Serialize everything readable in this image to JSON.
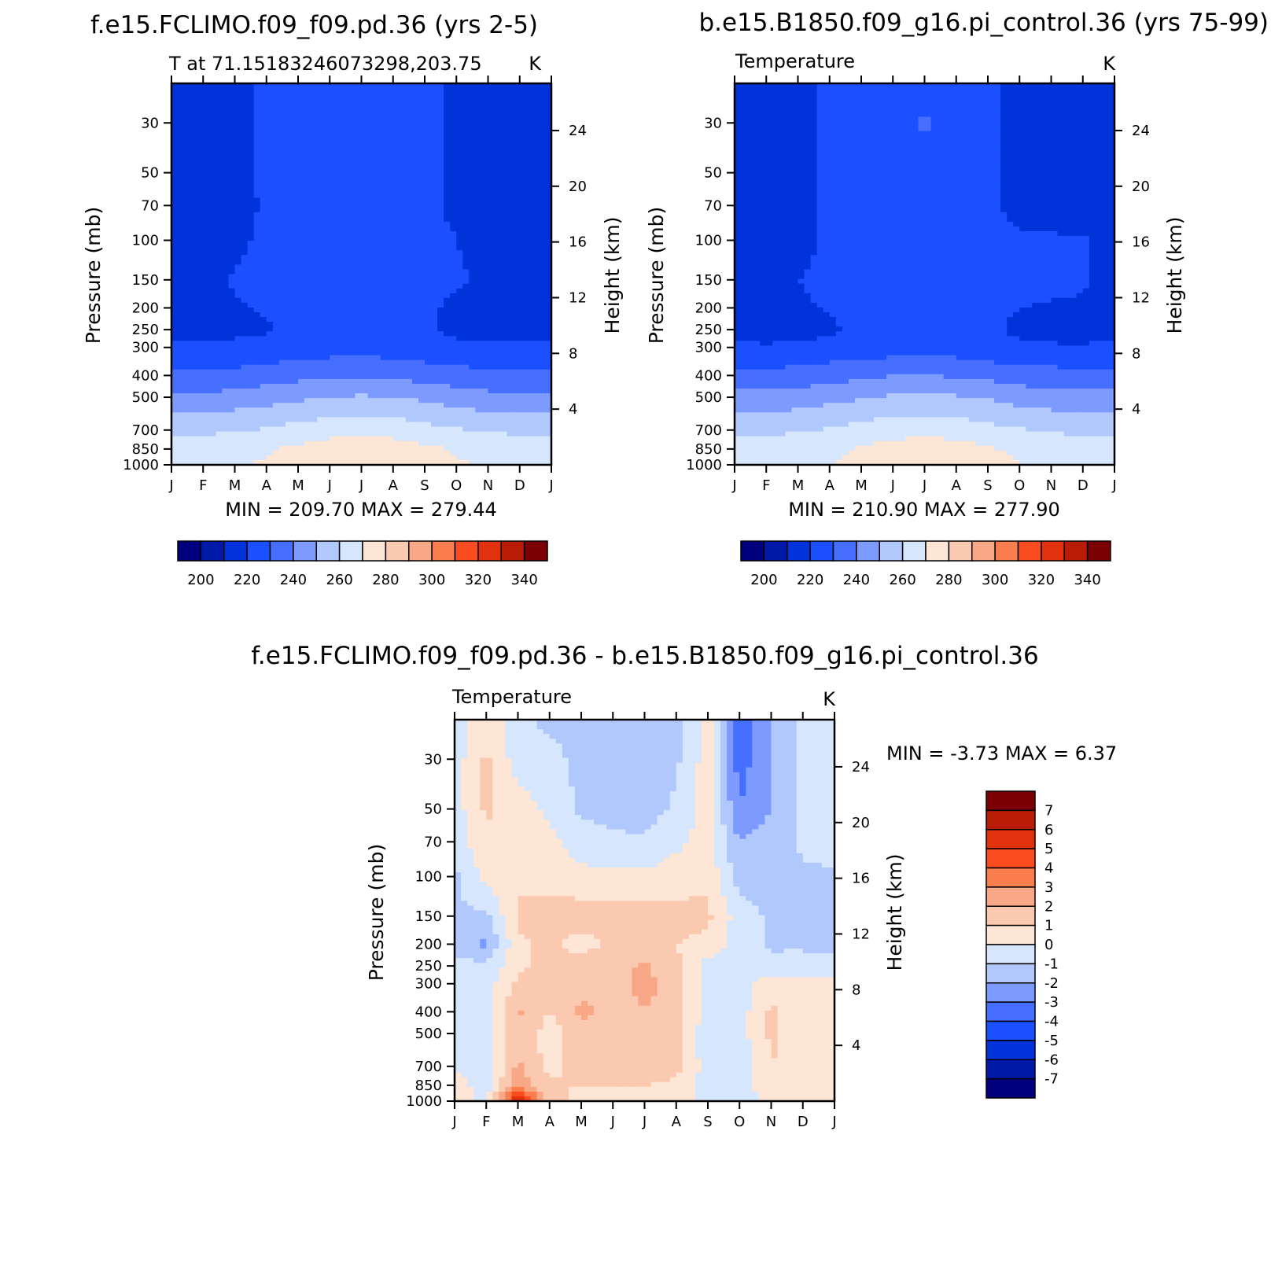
{
  "colors": {
    "abs_fill": [
      "#00007f",
      "#0019a8",
      "#0033d9",
      "#1a50ff",
      "#466fff",
      "#7d9bff",
      "#b1c8fc",
      "#d6e6fc",
      "#fde6d6",
      "#fbc9b0",
      "#f9a887",
      "#fa7e4e",
      "#fa4c1e",
      "#e1320d",
      "#b81c04",
      "#7c0003"
    ],
    "diff_fill": [
      "#00007f",
      "#0019a8",
      "#0033d9",
      "#1a50ff",
      "#466fff",
      "#7d9bff",
      "#b1c8fc",
      "#d6e6fc",
      "#fde6d6",
      "#fbc9b0",
      "#f9a887",
      "#fa7e4e",
      "#fa4c1e",
      "#e1320d",
      "#b81c04",
      "#7c0003"
    ]
  },
  "panel1": {
    "title": "f.e15.FCLIMO.f09_f09.pd.36 (yrs 2-5)",
    "left_label": "T at 71.15183246073298,203.75",
    "right_label": "K",
    "stats": "MIN = 209.70 MAX = 279.44",
    "ylabel": "Pressure (mb)",
    "y2label": "Height (km)"
  },
  "panel2": {
    "title": "b.e15.B1850.f09_g16.pi_control.36 (yrs 75-99)",
    "left_label": "Temperature",
    "right_label": "K",
    "stats": "MIN = 210.90 MAX = 277.90",
    "ylabel": "Pressure (mb)",
    "y2label": "Height (km)"
  },
  "panel3": {
    "title": "f.e15.FCLIMO.f09_f09.pd.36 - b.e15.B1850.f09_g16.pi_control.36",
    "left_label": "Temperature",
    "right_label": "K",
    "stats": "MIN = -3.73 MAX = 6.37",
    "ylabel": "Pressure (mb)",
    "y2label": "Height (km)"
  },
  "colorbar_abs": {
    "labels": [
      "200",
      "220",
      "240",
      "260",
      "280",
      "300",
      "320",
      "340"
    ]
  },
  "colorbar_diff": {
    "labels": [
      "7",
      "6",
      "5",
      "4",
      "3",
      "2",
      "1",
      "0",
      "-1",
      "-2",
      "-3",
      "-4",
      "-5",
      "-6",
      "-7"
    ]
  },
  "chart_data": [
    {
      "type": "heatmap",
      "title": "f.e15.FCLIMO.f09_f09.pd.36 (yrs 2-5)",
      "subtitle": "T at 71.15183246073298,203.75",
      "units": "K",
      "x_ticks": [
        "J",
        "F",
        "M",
        "A",
        "M",
        "J",
        "J",
        "A",
        "S",
        "O",
        "N",
        "D",
        "J"
      ],
      "y_ticks_pressure_mb": [
        30,
        50,
        70,
        100,
        150,
        200,
        250,
        300,
        400,
        500,
        700,
        850,
        1000
      ],
      "y2_ticks_height_km": [
        4,
        8,
        12,
        16,
        20,
        24
      ],
      "xlabel": "",
      "ylabel": "Pressure (mb)",
      "y2label": "Height (km)",
      "y_scale": "log",
      "contour_levels": [
        200,
        210,
        220,
        230,
        240,
        250,
        260,
        270,
        280,
        290,
        300,
        310,
        320,
        330,
        340
      ],
      "min": 209.7,
      "max": 279.44,
      "pressure_levels_mb": [
        20,
        30,
        50,
        70,
        100,
        150,
        200,
        250,
        300,
        400,
        500,
        700,
        850,
        1000
      ],
      "months": [
        "J",
        "F",
        "M",
        "A",
        "M",
        "J",
        "J",
        "A",
        "S",
        "O",
        "N",
        "D",
        "J"
      ],
      "values": [
        [
          215,
          215,
          217,
          222,
          224,
          224,
          225,
          224,
          222,
          219,
          217,
          215,
          215
        ],
        [
          215,
          215,
          217,
          222,
          224,
          224,
          225,
          224,
          222,
          219,
          217,
          215,
          215
        ],
        [
          215,
          215,
          217,
          222,
          224,
          224,
          225,
          224,
          222,
          219,
          217,
          215,
          215
        ],
        [
          215,
          215,
          217,
          221,
          224,
          224,
          225,
          224,
          221,
          219,
          217,
          215,
          215
        ],
        [
          215,
          215,
          218,
          222,
          223,
          224,
          224,
          224,
          222,
          220,
          217,
          215,
          215
        ],
        [
          216,
          216,
          221,
          223,
          224,
          224,
          225,
          224,
          223,
          221,
          219,
          216,
          216
        ],
        [
          217,
          217,
          219,
          221,
          224,
          224,
          225,
          224,
          222,
          218,
          217,
          217,
          217
        ],
        [
          218,
          217,
          218,
          219,
          223,
          224,
          225,
          224,
          221,
          218,
          218,
          217,
          218
        ],
        [
          222,
          221,
          222,
          223,
          224,
          225,
          226,
          225,
          223,
          222,
          221,
          221,
          222
        ],
        [
          232,
          232,
          233,
          235,
          237,
          239,
          239,
          238,
          236,
          234,
          233,
          232,
          232
        ],
        [
          242,
          242,
          244,
          246,
          248,
          250,
          251,
          250,
          248,
          245,
          243,
          242,
          242
        ],
        [
          258,
          258,
          259,
          261,
          264,
          266,
          267,
          266,
          263,
          261,
          259,
          258,
          258
        ],
        [
          265,
          266,
          267,
          269,
          272,
          275,
          276,
          275,
          272,
          269,
          267,
          266,
          265
        ],
        [
          268,
          269,
          269,
          271,
          274,
          278,
          279,
          278,
          275,
          271,
          269,
          268,
          268
        ]
      ]
    },
    {
      "type": "heatmap",
      "title": "b.e15.B1850.f09_g16.pi_control.36 (yrs 75-99)",
      "subtitle": "Temperature",
      "units": "K",
      "x_ticks": [
        "J",
        "F",
        "M",
        "A",
        "M",
        "J",
        "J",
        "A",
        "S",
        "O",
        "N",
        "D",
        "J"
      ],
      "y_ticks_pressure_mb": [
        30,
        50,
        70,
        100,
        150,
        200,
        250,
        300,
        400,
        500,
        700,
        850,
        1000
      ],
      "y2_ticks_height_km": [
        4,
        8,
        12,
        16,
        20,
        24
      ],
      "xlabel": "",
      "ylabel": "Pressure (mb)",
      "y2label": "Height (km)",
      "y_scale": "log",
      "contour_levels": [
        200,
        210,
        220,
        230,
        240,
        250,
        260,
        270,
        280,
        290,
        300,
        310,
        320,
        330,
        340
      ],
      "min": 210.9,
      "max": 277.9,
      "pressure_levels_mb": [
        20,
        30,
        50,
        70,
        100,
        150,
        200,
        250,
        300,
        400,
        500,
        700,
        850,
        1000
      ],
      "months": [
        "J",
        "F",
        "M",
        "A",
        "M",
        "J",
        "J",
        "A",
        "S",
        "O",
        "N",
        "D",
        "J"
      ],
      "values": [
        [
          215,
          215,
          216,
          222,
          225,
          226,
          228,
          226,
          221,
          218,
          216,
          215,
          215
        ],
        [
          215,
          215,
          216,
          222,
          225,
          226,
          231,
          226,
          221,
          218,
          216,
          215,
          215
        ],
        [
          215,
          215,
          216,
          222,
          225,
          226,
          227,
          226,
          221,
          218,
          216,
          215,
          215
        ],
        [
          215,
          215,
          216,
          222,
          225,
          226,
          226,
          226,
          221,
          218,
          216,
          215,
          215
        ],
        [
          215,
          215,
          216,
          222,
          224,
          225,
          226,
          226,
          223,
          221,
          221,
          221,
          215
        ],
        [
          215,
          215,
          220,
          223,
          224,
          225,
          226,
          226,
          224,
          223,
          223,
          222,
          215
        ],
        [
          215,
          215,
          218,
          221,
          224,
          225,
          226,
          225,
          222,
          220,
          219,
          218,
          215
        ],
        [
          217,
          216,
          217,
          218,
          223,
          224,
          225,
          225,
          222,
          218,
          217,
          216,
          217
        ],
        [
          222,
          221,
          222,
          223,
          224,
          225,
          226,
          225,
          223,
          222,
          221,
          221,
          222
        ],
        [
          233,
          233,
          234,
          236,
          238,
          240,
          240,
          239,
          237,
          235,
          234,
          233,
          233
        ],
        [
          243,
          243,
          245,
          247,
          249,
          251,
          252,
          251,
          249,
          246,
          244,
          243,
          243
        ],
        [
          258,
          258,
          259,
          261,
          264,
          266,
          267,
          266,
          263,
          261,
          259,
          258,
          258
        ],
        [
          264,
          265,
          266,
          268,
          271,
          274,
          275,
          274,
          271,
          268,
          266,
          265,
          264
        ],
        [
          267,
          268,
          268,
          270,
          273,
          277,
          278,
          277,
          274,
          270,
          268,
          267,
          267
        ]
      ]
    },
    {
      "type": "heatmap",
      "title": "f.e15.FCLIMO.f09_f09.pd.36 - b.e15.B1850.f09_g16.pi_control.36",
      "subtitle": "Temperature",
      "units": "K",
      "x_ticks": [
        "J",
        "F",
        "M",
        "A",
        "M",
        "J",
        "J",
        "A",
        "S",
        "O",
        "N",
        "D",
        "J"
      ],
      "y_ticks_pressure_mb": [
        30,
        50,
        70,
        100,
        150,
        200,
        250,
        300,
        400,
        500,
        700,
        850,
        1000
      ],
      "y2_ticks_height_km": [
        4,
        8,
        12,
        16,
        20,
        24
      ],
      "xlabel": "",
      "ylabel": "Pressure (mb)",
      "y2label": "Height (km)",
      "y_scale": "log",
      "contour_levels": [
        -7,
        -6,
        -5,
        -4,
        -3,
        -2,
        -1,
        0,
        1,
        2,
        3,
        4,
        5,
        6,
        7
      ],
      "min": -3.73,
      "max": 6.37,
      "pressure_levels_mb": [
        20,
        30,
        50,
        70,
        100,
        150,
        200,
        250,
        300,
        400,
        500,
        700,
        850,
        1000
      ],
      "months": [
        "J",
        "F",
        "M",
        "A",
        "M",
        "J",
        "J",
        "A",
        "S",
        "O",
        "N",
        "D",
        "J"
      ],
      "values": [
        [
          -0.5,
          0.8,
          -0.8,
          -1.2,
          -1.3,
          -1.5,
          -1.6,
          -1.2,
          0.5,
          -3.5,
          -2.0,
          -0.8,
          -0.5
        ],
        [
          -0.5,
          1.2,
          -0.5,
          -0.7,
          -1.3,
          -1.5,
          -1.6,
          -1.2,
          0.5,
          -3.5,
          -2.0,
          -0.8,
          -0.5
        ],
        [
          -0.5,
          1.2,
          0.5,
          -0.2,
          -1.2,
          -1.4,
          -1.5,
          -0.8,
          0.5,
          -3.0,
          -2.0,
          -0.8,
          -0.5
        ],
        [
          -0.5,
          0.8,
          0.5,
          0.3,
          -0.5,
          -0.8,
          -0.8,
          -0.3,
          0.5,
          -2.0,
          -1.5,
          -0.8,
          -0.5
        ],
        [
          -1.2,
          0.3,
          0.8,
          0.6,
          0.3,
          0.2,
          0.2,
          0.6,
          0.8,
          -1.5,
          -1.5,
          -1.2,
          -1.2
        ],
        [
          -1.2,
          -1.2,
          1.2,
          1.5,
          1.5,
          1.6,
          1.5,
          1.3,
          1.2,
          -0.5,
          -1.2,
          -1.2,
          -1.2
        ],
        [
          -1.5,
          -2.2,
          0.8,
          1.2,
          0.6,
          1.2,
          1.2,
          1.0,
          0.8,
          -0.5,
          -1.2,
          -1.2,
          -1.5
        ],
        [
          -0.5,
          -0.8,
          0.8,
          1.3,
          1.5,
          1.5,
          2.2,
          1.2,
          -0.5,
          -0.6,
          -0.6,
          -0.5,
          -0.5
        ],
        [
          -0.5,
          -0.5,
          1.2,
          1.5,
          1.5,
          1.6,
          2.3,
          1.6,
          -0.5,
          -0.5,
          0.5,
          0.5,
          0.5
        ],
        [
          -0.5,
          -0.5,
          2.2,
          1.0,
          2.3,
          1.6,
          2.0,
          1.6,
          -0.5,
          -0.5,
          1.2,
          0.5,
          0.5
        ],
        [
          -0.5,
          -0.5,
          1.8,
          0.5,
          1.5,
          1.6,
          1.5,
          1.5,
          -0.8,
          -0.5,
          1.2,
          0.5,
          0.5
        ],
        [
          -0.3,
          -0.5,
          2.2,
          0.6,
          1.5,
          1.5,
          1.5,
          1.3,
          -0.5,
          -0.5,
          1.0,
          0.5,
          0.5
        ],
        [
          0.5,
          -0.5,
          2.8,
          1.2,
          1.0,
          1.0,
          1.0,
          0.8,
          -0.5,
          -0.5,
          0.6,
          0.5,
          0.8
        ],
        [
          1.2,
          -0.5,
          6.3,
          1.5,
          0.5,
          0.5,
          0.5,
          0.5,
          -0.5,
          -0.5,
          0.3,
          0.3,
          1.0
        ]
      ]
    }
  ]
}
